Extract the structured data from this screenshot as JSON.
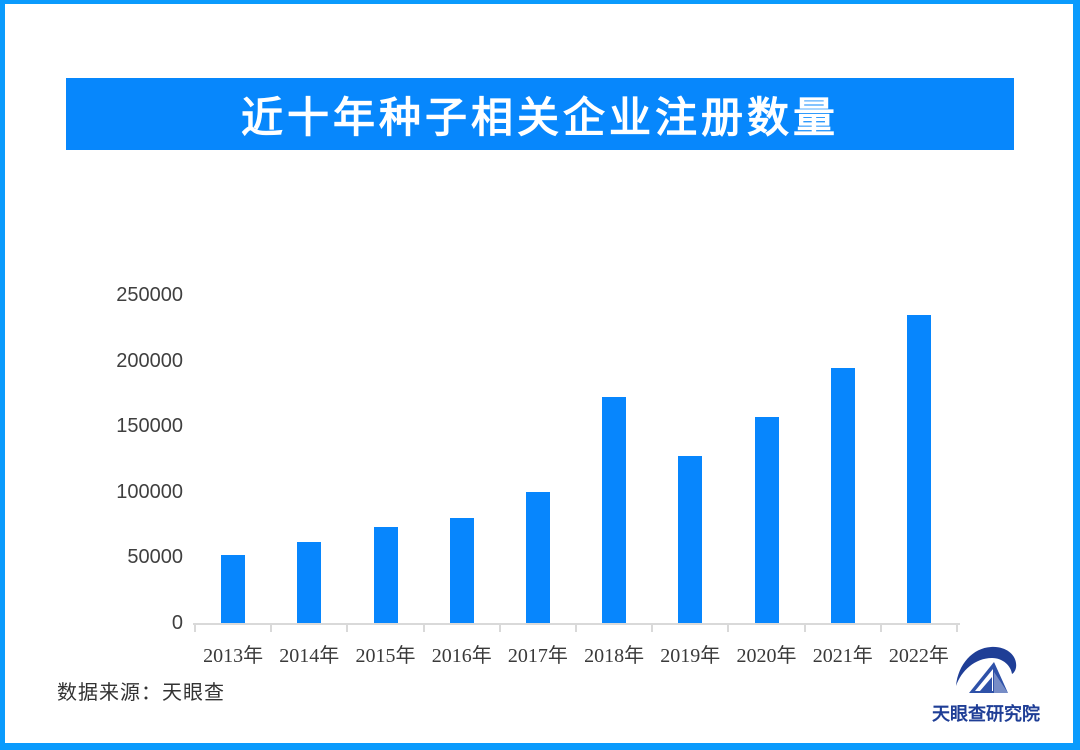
{
  "page": {
    "border_color": "#0a9bfd",
    "background": "#ffffff"
  },
  "banner": {
    "title": "近十年种子相关企业注册数量",
    "bg_color": "#0787fc",
    "text_color": "#ffffff"
  },
  "chart_data": {
    "type": "bar",
    "title": "近十年种子相关企业注册数量",
    "categories": [
      "2013年",
      "2014年",
      "2015年",
      "2016年",
      "2017年",
      "2018年",
      "2019年",
      "2020年",
      "2021年",
      "2022年"
    ],
    "values": [
      52000,
      62000,
      73000,
      80000,
      100000,
      172000,
      127000,
      157000,
      194000,
      235000
    ],
    "xlabel": "",
    "ylabel": "",
    "ylim": [
      0,
      250000
    ],
    "ytick_interval": 50000,
    "yticks": [
      "0",
      "50000",
      "100000",
      "150000",
      "200000",
      "250000"
    ],
    "grid": false,
    "legend_position": "none",
    "bar_color": "#0786fd",
    "axis_color": "#d9d9d9",
    "tick_label_color": "#3f3f3f"
  },
  "footer": {
    "source_label": "数据来源：天眼查",
    "logo_text": "天眼查研究院",
    "logo_color": "#1f3e96",
    "logo_triangle_color": "#2e51a8"
  }
}
